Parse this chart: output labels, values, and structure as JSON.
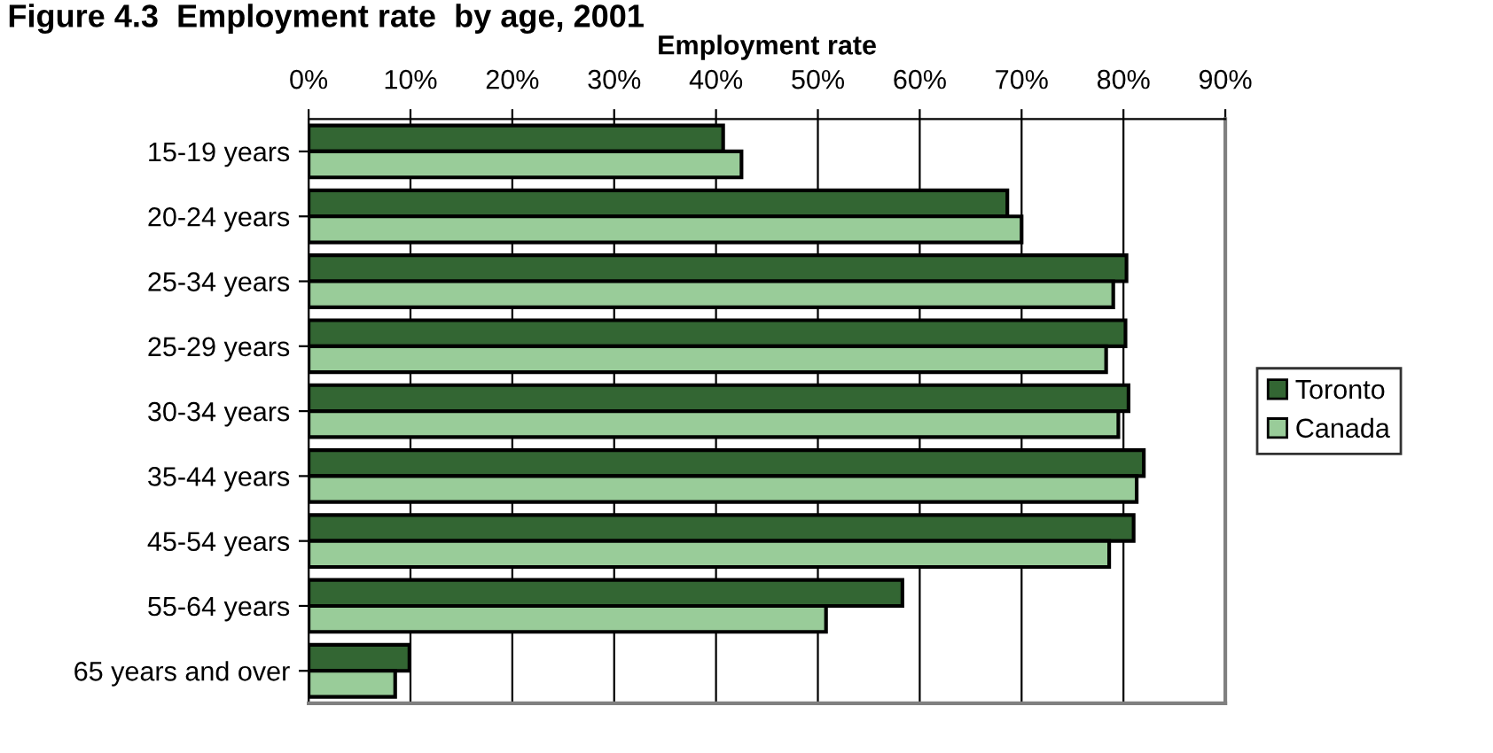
{
  "chart_data": {
    "type": "bar",
    "orientation": "horizontal",
    "title": "Figure 4.3  Employment rate  by age, 2001",
    "xlabel": "Employment rate",
    "categories": [
      "15-19 years",
      "20-24 years",
      "25-34 years",
      "25-29 years",
      "30-34 years",
      "35-44 years",
      "45-54 years",
      "55-64 years",
      "65 years and over"
    ],
    "series": [
      {
        "name": "Toronto",
        "color": "#336633",
        "values": [
          40.7,
          68.6,
          80.3,
          80.2,
          80.5,
          82.0,
          81.0,
          58.3,
          9.9
        ]
      },
      {
        "name": "Canada",
        "color": "#99cc99",
        "values": [
          42.5,
          70.0,
          79.0,
          78.3,
          79.5,
          81.3,
          78.6,
          50.8,
          8.5
        ]
      }
    ],
    "xlim": [
      0,
      90
    ],
    "xticks": [
      {
        "value": 0,
        "label": "0%"
      },
      {
        "value": 10,
        "label": "10%"
      },
      {
        "value": 20,
        "label": "20%"
      },
      {
        "value": 30,
        "label": "30%"
      },
      {
        "value": 40,
        "label": "40%"
      },
      {
        "value": 50,
        "label": "50%"
      },
      {
        "value": 60,
        "label": "60%"
      },
      {
        "value": 70,
        "label": "70%"
      },
      {
        "value": 80,
        "label": "80%"
      },
      {
        "value": 90,
        "label": "90%"
      }
    ],
    "grid": "x",
    "legend": "right"
  }
}
